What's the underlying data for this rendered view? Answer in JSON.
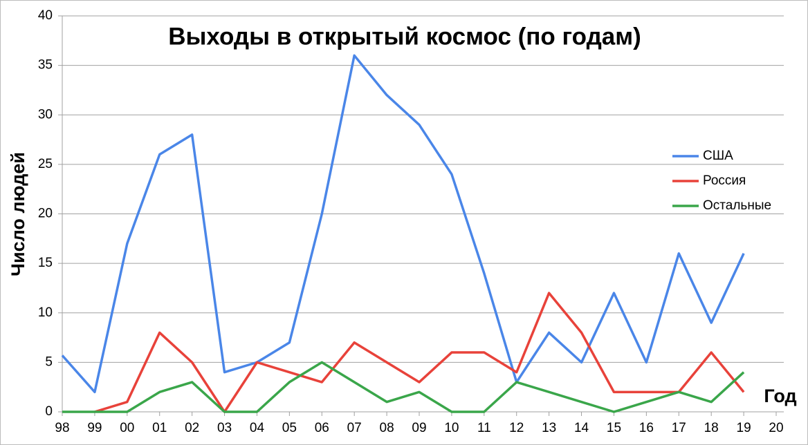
{
  "chart_data": {
    "type": "line",
    "title": "Выходы в открытый космос (по годам)",
    "y_label": "Число людей",
    "x_label": "Год",
    "categories": [
      "98",
      "99",
      "00",
      "01",
      "02",
      "03",
      "04",
      "05",
      "06",
      "07",
      "08",
      "09",
      "10",
      "11",
      "12",
      "13",
      "14",
      "15",
      "16",
      "17",
      "18",
      "19",
      "20"
    ],
    "series": [
      {
        "name": "США",
        "color": "#4a86e8",
        "values": [
          5.7,
          2,
          17,
          26,
          28,
          4,
          5,
          7,
          20,
          36,
          32,
          29,
          24,
          14,
          3,
          8,
          5,
          12,
          5,
          16,
          9,
          16,
          null
        ]
      },
      {
        "name": "Россия",
        "color": "#e8423a",
        "values": [
          null,
          0,
          1,
          8,
          5,
          0,
          5,
          4,
          3,
          7,
          5,
          3,
          6,
          6,
          4,
          12,
          8,
          2,
          2,
          2,
          6,
          2,
          null
        ]
      },
      {
        "name": "Остальные",
        "color": "#3aa64a",
        "values": [
          0,
          0,
          0,
          2,
          3,
          0,
          0,
          3,
          5,
          3,
          1,
          2,
          0,
          0,
          3,
          2,
          1,
          0,
          1,
          2,
          1,
          4,
          null
        ]
      }
    ],
    "ylim": [
      0,
      40
    ],
    "yticks": [
      0,
      5,
      10,
      15,
      20,
      25,
      30,
      35,
      40
    ],
    "grid": true,
    "legend": "right"
  }
}
